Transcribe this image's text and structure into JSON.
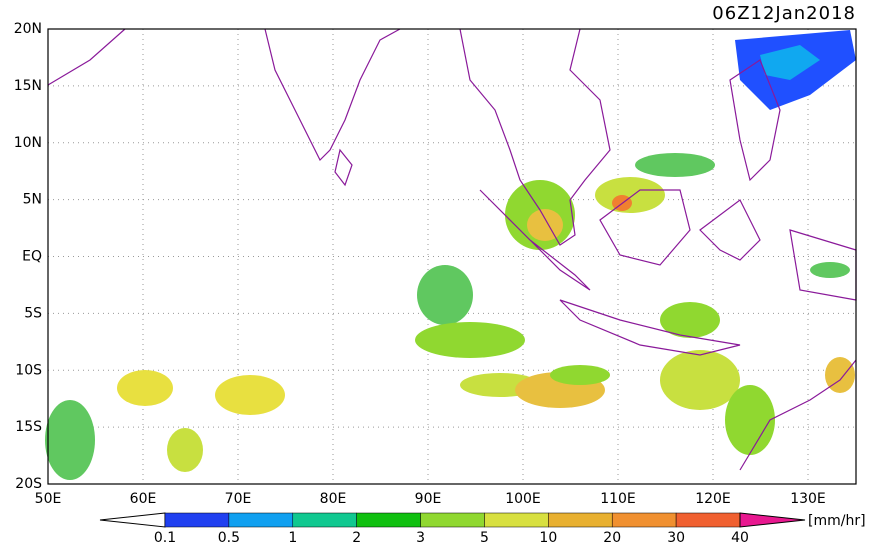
{
  "timestamp": "06Z12Jan2018",
  "lat_labels": [
    "20N",
    "15N",
    "10N",
    "5N",
    "EQ",
    "5S",
    "10S",
    "15S",
    "20S"
  ],
  "lon_labels": [
    "50E",
    "60E",
    "70E",
    "80E",
    "90E",
    "100E",
    "110E",
    "120E",
    "130E"
  ],
  "colorbar": {
    "labels": [
      "0.1",
      "0.5",
      "1",
      "2",
      "3",
      "5",
      "10",
      "20",
      "30",
      "40"
    ],
    "unit": "[mm/hr]"
  }
}
